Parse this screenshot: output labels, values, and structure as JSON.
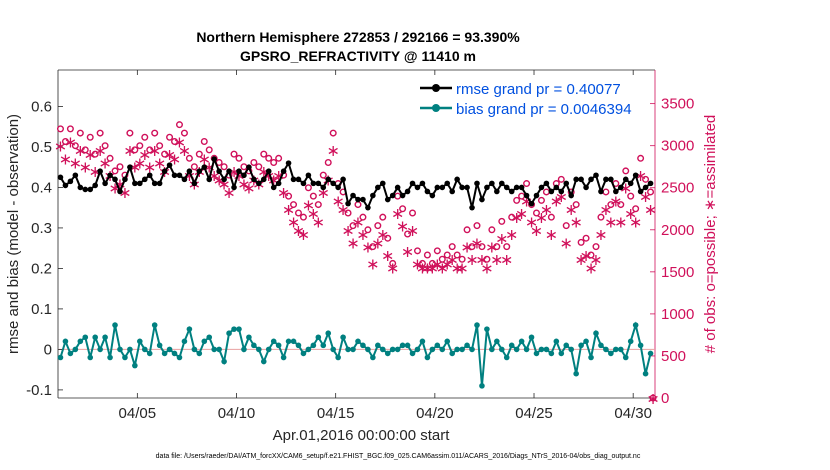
{
  "chart_data": {
    "type": "line",
    "title": "Northern Hemisphere 272853 / 292166 = 93.390%",
    "subtitle": "GPSRO_REFRACTIVITY @ 11410 m",
    "xlabel": "Apr.01,2016 00:00:00 start",
    "ylabel_left": "rmse and bias (model - observation)",
    "ylabel_right": "# of obs: o=possible; ∗=assimilated",
    "footnote": "data file: /Users/raeder/DAI/ATM_forcXX/CAM6_setup/f.e21.FHIST_BGC.f09_025.CAM6assim.011/ACARS_2016/Diags_NTrS_2016-04/obs_diag_output.nc",
    "xlim": [
      1,
      31.1
    ],
    "ylim_left": [
      -0.12,
      0.69
    ],
    "ylim_right": [
      0,
      3900
    ],
    "x_ticks": [
      {
        "x": 5,
        "label": "04/05"
      },
      {
        "x": 10,
        "label": "04/10"
      },
      {
        "x": 15,
        "label": "04/15"
      },
      {
        "x": 20,
        "label": "04/20"
      },
      {
        "x": 25,
        "label": "04/25"
      },
      {
        "x": 30,
        "label": "04/30"
      }
    ],
    "y_ticks_left": [
      {
        "v": -0.1,
        "label": "-0.1"
      },
      {
        "v": 0,
        "label": "0"
      },
      {
        "v": 0.1,
        "label": "0.1"
      },
      {
        "v": 0.2,
        "label": "0.2"
      },
      {
        "v": 0.3,
        "label": "0.3"
      },
      {
        "v": 0.4,
        "label": "0.4"
      },
      {
        "v": 0.5,
        "label": "0.5"
      },
      {
        "v": 0.6,
        "label": "0.6"
      }
    ],
    "y_ticks_right": [
      {
        "v": 0,
        "label": "0"
      },
      {
        "v": 500,
        "label": "500"
      },
      {
        "v": 1000,
        "label": "1000"
      },
      {
        "v": 1500,
        "label": "1500"
      },
      {
        "v": 2000,
        "label": "2000"
      },
      {
        "v": 2500,
        "label": "2500"
      },
      {
        "v": 3000,
        "label": "3000"
      },
      {
        "v": 3500,
        "label": "3500"
      }
    ],
    "colors": {
      "rmse": "#000000",
      "bias": "#008080",
      "obs": "#d0105a",
      "legend_text": "#0050e0",
      "zero_line": "#e8a0a0"
    },
    "series": [
      {
        "name": "rmse grand pr = 0.40077",
        "axis": "left",
        "x": [
          1.125,
          1.375,
          1.625,
          1.875,
          2.125,
          2.375,
          2.625,
          2.875,
          3.125,
          3.375,
          3.625,
          3.875,
          4.125,
          4.375,
          4.625,
          4.875,
          5.125,
          5.375,
          5.625,
          5.875,
          6.125,
          6.375,
          6.625,
          6.875,
          7.125,
          7.375,
          7.625,
          7.875,
          8.125,
          8.375,
          8.625,
          8.875,
          9.125,
          9.375,
          9.625,
          9.875,
          10.125,
          10.375,
          10.625,
          10.875,
          11.125,
          11.375,
          11.625,
          11.875,
          12.125,
          12.375,
          12.625,
          12.875,
          13.125,
          13.375,
          13.625,
          13.875,
          14.125,
          14.375,
          14.625,
          14.875,
          15.125,
          15.375,
          15.625,
          15.875,
          16.125,
          16.375,
          16.625,
          16.875,
          17.125,
          17.375,
          17.625,
          17.875,
          18.125,
          18.375,
          18.625,
          18.875,
          19.125,
          19.375,
          19.625,
          19.875,
          20.125,
          20.375,
          20.625,
          20.875,
          21.125,
          21.375,
          21.625,
          21.875,
          22.125,
          22.375,
          22.625,
          22.875,
          23.125,
          23.375,
          23.625,
          23.875,
          24.125,
          24.375,
          24.625,
          24.875,
          25.125,
          25.375,
          25.625,
          25.875,
          26.125,
          26.375,
          26.625,
          26.875,
          27.125,
          27.375,
          27.625,
          27.875,
          28.125,
          28.375,
          28.625,
          28.875,
          29.125,
          29.375,
          29.625,
          29.875,
          30.125,
          30.375,
          30.625,
          30.875
        ],
        "values": [
          0.425,
          0.405,
          0.415,
          0.43,
          0.4,
          0.395,
          0.395,
          0.405,
          0.44,
          0.41,
          0.43,
          0.42,
          0.39,
          0.42,
          0.45,
          0.41,
          0.41,
          0.42,
          0.43,
          0.41,
          0.41,
          0.44,
          0.455,
          0.43,
          0.43,
          0.42,
          0.44,
          0.41,
          0.44,
          0.45,
          0.42,
          0.47,
          0.44,
          0.42,
          0.44,
          0.4,
          0.44,
          0.43,
          0.45,
          0.42,
          0.41,
          0.42,
          0.44,
          0.4,
          0.41,
          0.44,
          0.46,
          0.42,
          0.42,
          0.41,
          0.43,
          0.41,
          0.41,
          0.4,
          0.42,
          0.41,
          0.4,
          0.42,
          0.36,
          0.38,
          0.37,
          0.37,
          0.35,
          0.38,
          0.4,
          0.41,
          0.37,
          0.38,
          0.4,
          0.38,
          0.39,
          0.41,
          0.4,
          0.41,
          0.39,
          0.38,
          0.4,
          0.4,
          0.41,
          0.39,
          0.42,
          0.4,
          0.4,
          0.35,
          0.41,
          0.37,
          0.4,
          0.41,
          0.39,
          0.41,
          0.4,
          0.39,
          0.4,
          0.4,
          0.38,
          0.36,
          0.38,
          0.4,
          0.41,
          0.39,
          0.4,
          0.39,
          0.41,
          0.38,
          0.42,
          0.42,
          0.4,
          0.42,
          0.43,
          0.39,
          0.42,
          0.42,
          0.39,
          0.4,
          0.42,
          0.41,
          0.43,
          0.39,
          0.4,
          0.41
        ]
      },
      {
        "name": "bias grand pr = 0.0046394",
        "axis": "left",
        "x": [
          1.125,
          1.375,
          1.625,
          1.875,
          2.125,
          2.375,
          2.625,
          2.875,
          3.125,
          3.375,
          3.625,
          3.875,
          4.125,
          4.375,
          4.625,
          4.875,
          5.125,
          5.375,
          5.625,
          5.875,
          6.125,
          6.375,
          6.625,
          6.875,
          7.125,
          7.375,
          7.625,
          7.875,
          8.125,
          8.375,
          8.625,
          8.875,
          9.125,
          9.375,
          9.625,
          9.875,
          10.125,
          10.375,
          10.625,
          10.875,
          11.125,
          11.375,
          11.625,
          11.875,
          12.125,
          12.375,
          12.625,
          12.875,
          13.125,
          13.375,
          13.625,
          13.875,
          14.125,
          14.375,
          14.625,
          14.875,
          15.125,
          15.375,
          15.625,
          15.875,
          16.125,
          16.375,
          16.625,
          16.875,
          17.125,
          17.375,
          17.625,
          17.875,
          18.125,
          18.375,
          18.625,
          18.875,
          19.125,
          19.375,
          19.625,
          19.875,
          20.125,
          20.375,
          20.625,
          20.875,
          21.125,
          21.375,
          21.625,
          21.875,
          22.125,
          22.375,
          22.625,
          22.875,
          23.125,
          23.375,
          23.625,
          23.875,
          24.125,
          24.375,
          24.625,
          24.875,
          25.125,
          25.375,
          25.625,
          25.875,
          26.125,
          26.375,
          26.625,
          26.875,
          27.125,
          27.375,
          27.625,
          27.875,
          28.125,
          28.375,
          28.625,
          28.875,
          29.125,
          29.375,
          29.625,
          29.875,
          30.125,
          30.375,
          30.625,
          30.875
        ],
        "values": [
          -0.02,
          0.02,
          -0.01,
          0.0,
          0.02,
          0.03,
          -0.02,
          0.03,
          0.0,
          0.03,
          -0.02,
          0.06,
          0.0,
          -0.02,
          0.0,
          -0.04,
          0.02,
          0.0,
          -0.01,
          0.06,
          0.01,
          -0.01,
          0.0,
          -0.01,
          -0.02,
          0.02,
          0.05,
          0.0,
          -0.01,
          0.02,
          0.03,
          0.0,
          0.0,
          -0.03,
          0.04,
          0.05,
          0.05,
          0.0,
          0.03,
          0.01,
          0.0,
          -0.03,
          0.0,
          0.02,
          0.01,
          -0.02,
          0.02,
          0.02,
          0.01,
          -0.01,
          0.0,
          0.01,
          0.03,
          0.01,
          0.04,
          0.0,
          -0.02,
          0.03,
          0.0,
          0.0,
          0.02,
          0.01,
          0.0,
          -0.02,
          0.01,
          0.0,
          -0.01,
          0.0,
          0.0,
          0.01,
          0.01,
          -0.01,
          0.0,
          0.02,
          -0.02,
          0.0,
          0.01,
          0.0,
          0.02,
          -0.01,
          0.0,
          0.0,
          0.01,
          0.0,
          0.06,
          -0.09,
          0.05,
          0.0,
          0.02,
          0.0,
          -0.02,
          0.01,
          0.0,
          0.02,
          0.0,
          0.03,
          -0.01,
          0.0,
          0.0,
          -0.01,
          0.02,
          -0.01,
          0.01,
          0.0,
          -0.06,
          0.01,
          0.02,
          -0.02,
          0.04,
          0.01,
          0.0,
          -0.01,
          0.0,
          0.0,
          -0.02,
          0.02,
          0.06,
          0.01,
          -0.06,
          -0.01
        ]
      },
      {
        "name": "possible",
        "axis": "right",
        "marker": "o",
        "x": [
          1.125,
          1.375,
          1.625,
          1.875,
          2.125,
          2.375,
          2.625,
          2.875,
          3.125,
          3.375,
          3.625,
          3.875,
          4.125,
          4.375,
          4.625,
          4.875,
          5.125,
          5.375,
          5.625,
          5.875,
          6.125,
          6.375,
          6.625,
          6.875,
          7.125,
          7.375,
          7.625,
          7.875,
          8.125,
          8.375,
          8.625,
          8.875,
          9.125,
          9.375,
          9.625,
          9.875,
          10.125,
          10.375,
          10.625,
          10.875,
          11.125,
          11.375,
          11.625,
          11.875,
          12.125,
          12.375,
          12.625,
          12.875,
          13.125,
          13.375,
          13.625,
          13.875,
          14.125,
          14.375,
          14.625,
          14.875,
          15.125,
          15.375,
          15.625,
          15.875,
          16.125,
          16.375,
          16.625,
          16.875,
          17.125,
          17.375,
          17.625,
          17.875,
          18.125,
          18.375,
          18.625,
          18.875,
          19.125,
          19.375,
          19.625,
          19.875,
          20.125,
          20.375,
          20.625,
          20.875,
          21.125,
          21.375,
          21.625,
          21.875,
          22.125,
          22.375,
          22.625,
          22.875,
          23.125,
          23.375,
          23.625,
          23.875,
          24.125,
          24.375,
          24.625,
          24.875,
          25.125,
          25.375,
          25.625,
          25.875,
          26.125,
          26.375,
          26.625,
          26.875,
          27.125,
          27.375,
          27.625,
          27.875,
          28.125,
          28.375,
          28.625,
          28.875,
          29.125,
          29.375,
          29.625,
          29.875,
          30.125,
          30.375,
          30.625,
          30.875,
          31.0
        ],
        "values": [
          3200,
          3050,
          3200,
          3000,
          3150,
          2950,
          3100,
          2900,
          3150,
          3000,
          2850,
          2700,
          2750,
          2650,
          3150,
          2950,
          3000,
          3100,
          2950,
          3150,
          3000,
          2900,
          3100,
          3050,
          3250,
          3150,
          2850,
          2750,
          2900,
          3050,
          2950,
          2850,
          2800,
          2750,
          2650,
          2900,
          2850,
          2750,
          2700,
          2800,
          2750,
          2900,
          2850,
          2800,
          2850,
          2650,
          2400,
          2300,
          2200,
          2150,
          2500,
          2400,
          2300,
          2650,
          2800,
          3150,
          2550,
          2450,
          2200,
          2050,
          2300,
          2150,
          2000,
          1800,
          2050,
          2150,
          1900,
          1600,
          2400,
          2250,
          1950,
          2200,
          1750,
          1600,
          1700,
          1600,
          1750,
          1650,
          1700,
          1800,
          1700,
          1650,
          2000,
          1800,
          2050,
          1800,
          1650,
          2000,
          1800,
          2100,
          1800,
          2150,
          2350,
          2400,
          2550,
          2300,
          2200,
          2350,
          2450,
          2150,
          2550,
          2600,
          2050,
          2450,
          2300,
          1850,
          1900,
          1700,
          1800,
          2150,
          2450,
          2300,
          2550,
          2300,
          2700,
          2400,
          2250,
          2850,
          2600,
          2450,
          0
        ]
      },
      {
        "name": "assimilated",
        "axis": "right",
        "marker": "*",
        "x": [
          1.125,
          1.375,
          1.625,
          1.875,
          2.125,
          2.375,
          2.625,
          2.875,
          3.125,
          3.375,
          3.625,
          3.875,
          4.125,
          4.375,
          4.625,
          4.875,
          5.125,
          5.375,
          5.625,
          5.875,
          6.125,
          6.375,
          6.625,
          6.875,
          7.125,
          7.375,
          7.625,
          7.875,
          8.125,
          8.375,
          8.625,
          8.875,
          9.125,
          9.375,
          9.625,
          9.875,
          10.125,
          10.375,
          10.625,
          10.875,
          11.125,
          11.375,
          11.625,
          11.875,
          12.125,
          12.375,
          12.625,
          12.875,
          13.125,
          13.375,
          13.625,
          13.875,
          14.125,
          14.375,
          14.625,
          14.875,
          15.125,
          15.375,
          15.625,
          15.875,
          16.125,
          16.375,
          16.625,
          16.875,
          17.125,
          17.375,
          17.625,
          17.875,
          18.125,
          18.375,
          18.625,
          18.875,
          19.125,
          19.375,
          19.625,
          19.875,
          20.125,
          20.375,
          20.625,
          20.875,
          21.125,
          21.375,
          21.625,
          21.875,
          22.125,
          22.375,
          22.625,
          22.875,
          23.125,
          23.375,
          23.625,
          23.875,
          24.125,
          24.375,
          24.625,
          24.875,
          25.125,
          25.375,
          25.625,
          25.875,
          26.125,
          26.375,
          26.625,
          26.875,
          27.125,
          27.375,
          27.625,
          27.875,
          28.125,
          28.375,
          28.625,
          28.875,
          29.125,
          29.375,
          29.625,
          29.875,
          30.125,
          30.375,
          30.625,
          30.875,
          31.0
        ],
        "values": [
          3000,
          2850,
          3050,
          2800,
          2950,
          2750,
          2900,
          2700,
          2950,
          2800,
          2650,
          2500,
          2550,
          2450,
          2950,
          2750,
          2800,
          2900,
          2750,
          2950,
          2800,
          2700,
          2900,
          2850,
          3050,
          2950,
          2650,
          2550,
          2700,
          2850,
          2750,
          2650,
          2600,
          2550,
          2450,
          2700,
          2650,
          2550,
          2500,
          2600,
          2550,
          2700,
          2650,
          2600,
          2650,
          2450,
          2250,
          2100,
          2000,
          1950,
          2300,
          2200,
          2100,
          2450,
          2600,
          2950,
          2350,
          2250,
          2000,
          1850,
          2100,
          1950,
          1800,
          1600,
          1850,
          1950,
          1700,
          1550,
          2200,
          2050,
          1750,
          2000,
          1600,
          1550,
          1550,
          1550,
          1600,
          1550,
          1600,
          1650,
          1550,
          1550,
          1800,
          1650,
          1850,
          1650,
          1550,
          1800,
          1650,
          1900,
          1650,
          1950,
          2150,
          2200,
          2350,
          2100,
          2000,
          2150,
          2250,
          1950,
          2350,
          2400,
          1850,
          2250,
          2100,
          1650,
          1700,
          1550,
          1650,
          1950,
          2250,
          2100,
          2350,
          2100,
          2500,
          2200,
          2100,
          2650,
          2400,
          2250,
          0
        ]
      }
    ]
  }
}
